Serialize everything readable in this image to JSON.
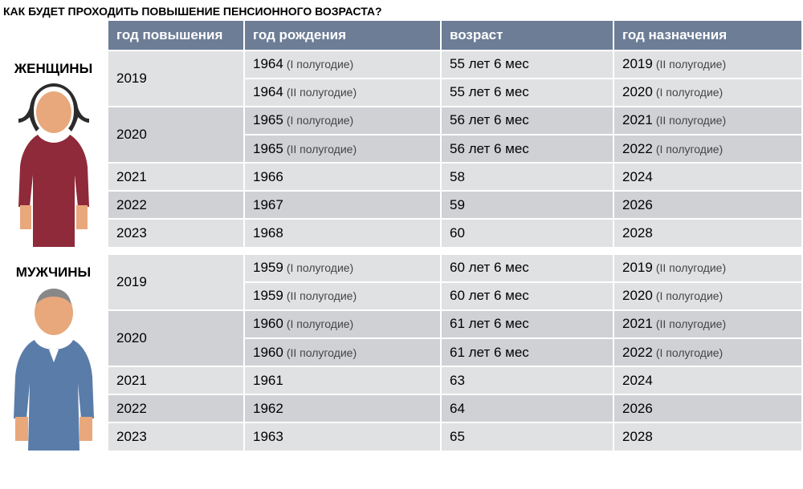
{
  "title": "КАК БУДЕТ ПРОХОДИТЬ ПОВЫШЕНИЕ ПЕНСИОННОГО ВОЗРАСТА?",
  "columns": [
    "год повышения",
    "год рождения",
    "возраст",
    "год назначения"
  ],
  "colors": {
    "header_bg": "#6d7d96",
    "header_text": "#ffffff",
    "row_light": "#e0e1e3",
    "row_dark": "#cfd1d5",
    "woman_skin": "#e8a87c",
    "woman_hair": "#2b2b2b",
    "woman_dress": "#8e2a3a",
    "man_skin": "#e8a87c",
    "man_shirt": "#5a7ca8"
  },
  "fonts": {
    "title_size": 14,
    "header_size": 17,
    "cell_size": 17,
    "note_size": 14
  },
  "sections": [
    {
      "label": "ЖЕНЩИНЫ",
      "illustration": "woman",
      "rows": [
        {
          "raise": "2019",
          "span": 2,
          "birth": "1964",
          "birth_note": "(I полугодие)",
          "age": "55 лет 6 мес",
          "assign": "2019",
          "assign_note": "(II полугодие)"
        },
        {
          "raise": "",
          "span": 0,
          "birth": "1964",
          "birth_note": "(II полугодие)",
          "age": "55 лет 6 мес",
          "assign": "2020",
          "assign_note": "(I полугодие)"
        },
        {
          "raise": "2020",
          "span": 2,
          "birth": "1965",
          "birth_note": "(I полугодие)",
          "age": "56 лет 6 мес",
          "assign": "2021",
          "assign_note": "(II полугодие)"
        },
        {
          "raise": "",
          "span": 0,
          "birth": "1965",
          "birth_note": "(II полугодие)",
          "age": "56 лет 6 мес",
          "assign": "2022",
          "assign_note": "(I полугодие)"
        },
        {
          "raise": "2021",
          "span": 1,
          "birth": "1966",
          "birth_note": "",
          "age": "58",
          "assign": "2024",
          "assign_note": ""
        },
        {
          "raise": "2022",
          "span": 1,
          "birth": "1967",
          "birth_note": "",
          "age": "59",
          "assign": "2026",
          "assign_note": ""
        },
        {
          "raise": "2023",
          "span": 1,
          "birth": "1968",
          "birth_note": "",
          "age": "60",
          "assign": "2028",
          "assign_note": ""
        }
      ]
    },
    {
      "label": "МУЖЧИНЫ",
      "illustration": "man",
      "rows": [
        {
          "raise": "2019",
          "span": 2,
          "birth": "1959",
          "birth_note": "(I полугодие)",
          "age": "60 лет 6 мес",
          "assign": "2019",
          "assign_note": "(II полугодие)"
        },
        {
          "raise": "",
          "span": 0,
          "birth": "1959",
          "birth_note": "(II полугодие)",
          "age": "60 лет 6 мес",
          "assign": "2020",
          "assign_note": "(I полугодие)"
        },
        {
          "raise": "2020",
          "span": 2,
          "birth": "1960",
          "birth_note": "(I полугодие)",
          "age": "61 лет 6 мес",
          "assign": "2021",
          "assign_note": "(II полугодие)"
        },
        {
          "raise": "",
          "span": 0,
          "birth": "1960",
          "birth_note": "(II полугодие)",
          "age": "61 лет 6 мес",
          "assign": "2022",
          "assign_note": "(I полугодие)"
        },
        {
          "raise": "2021",
          "span": 1,
          "birth": "1961",
          "birth_note": "",
          "age": "63",
          "assign": "2024",
          "assign_note": ""
        },
        {
          "raise": "2022",
          "span": 1,
          "birth": "1962",
          "birth_note": "",
          "age": "64",
          "assign": "2026",
          "assign_note": ""
        },
        {
          "raise": "2023",
          "span": 1,
          "birth": "1963",
          "birth_note": "",
          "age": "65",
          "assign": "2028",
          "assign_note": ""
        }
      ]
    }
  ]
}
